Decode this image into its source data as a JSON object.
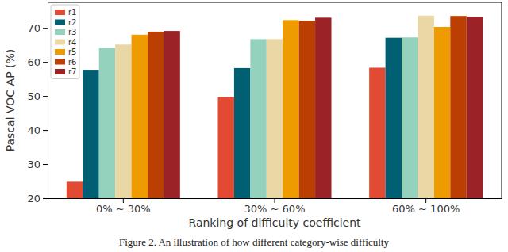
{
  "chart_data": {
    "type": "bar",
    "y_label": "Pascal VOC AP (%)",
    "x_label": "Ranking of difficulty coefficient",
    "annotations": [
      "Figure 2. An illustration of how different category-wise difficulty"
    ],
    "categories": [
      "0% ~ 30%",
      "30% ~ 60%",
      "60% ~ 100%"
    ],
    "series": [
      {
        "name": "r1",
        "color": "#e24a33",
        "values": [
          24.8,
          49.7,
          58.3
        ]
      },
      {
        "name": "r2",
        "color": "#005f73",
        "values": [
          57.7,
          58.2,
          67.1
        ]
      },
      {
        "name": "r3",
        "color": "#94d2bd",
        "values": [
          64.1,
          66.7,
          67.2
        ]
      },
      {
        "name": "r4",
        "color": "#e9d8a6",
        "values": [
          65.1,
          66.7,
          73.6
        ]
      },
      {
        "name": "r5",
        "color": "#ee9b00",
        "values": [
          68.0,
          72.3,
          70.3
        ]
      },
      {
        "name": "r6",
        "color": "#bb3e03",
        "values": [
          68.9,
          72.1,
          73.5
        ]
      },
      {
        "name": "r7",
        "color": "#9b2226",
        "values": [
          69.1,
          73.0,
          73.3
        ]
      }
    ],
    "ylim": [
      20,
      77.5
    ],
    "yticks": [
      20,
      30,
      40,
      50,
      60,
      70
    ],
    "grid": false,
    "legend": "upper left"
  }
}
